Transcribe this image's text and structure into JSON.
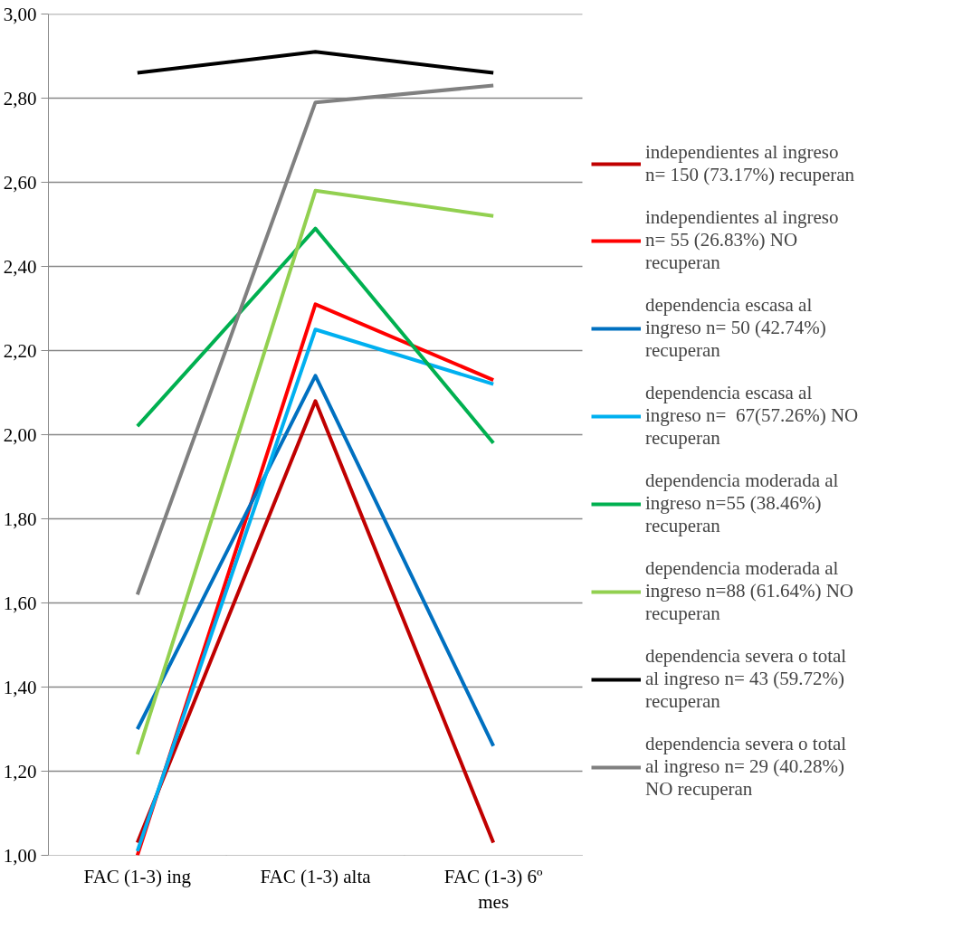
{
  "chart_data": {
    "type": "line",
    "categories": [
      "FAC (1-3) ing",
      "FAC (1-3) alta",
      "FAC (1-3) 6º mes"
    ],
    "ylim": [
      1.0,
      3.0
    ],
    "yticks": [
      {
        "value": 1.0,
        "label": "1,00"
      },
      {
        "value": 1.2,
        "label": "1,20"
      },
      {
        "value": 1.4,
        "label": "1,40"
      },
      {
        "value": 1.6,
        "label": "1,60"
      },
      {
        "value": 1.8,
        "label": "1,80"
      },
      {
        "value": 2.0,
        "label": "2,00"
      },
      {
        "value": 2.2,
        "label": "2,20"
      },
      {
        "value": 2.4,
        "label": "2,40"
      },
      {
        "value": 2.6,
        "label": "2,60"
      },
      {
        "value": 2.8,
        "label": "2,80"
      },
      {
        "value": 3.0,
        "label": "3,00"
      }
    ],
    "grid": "y",
    "legend": "right",
    "marker": "none",
    "line_style": "solid",
    "series": [
      {
        "name": "independientes al ingreso n= 150 (73.17%) recuperan",
        "color": "#c00000",
        "values": [
          1.03,
          2.08,
          1.03
        ]
      },
      {
        "name": "independientes al ingreso n= 55 (26.83%) NO recuperan",
        "color": "#ff0000",
        "values": [
          1.0,
          2.31,
          2.13
        ]
      },
      {
        "name": "dependencia escasa al ingreso n= 50 (42.74%) recuperan",
        "color": "#0070c0",
        "values": [
          1.3,
          2.14,
          1.26
        ]
      },
      {
        "name": "dependencia escasa al ingreso n=  67(57.26%) NO recuperan",
        "color": "#00b0f0",
        "values": [
          1.01,
          2.25,
          2.12
        ]
      },
      {
        "name": "dependencia moderada al ingreso n=55 (38.46%) recuperan",
        "color": "#00b050",
        "values": [
          2.02,
          2.49,
          1.98
        ]
      },
      {
        "name": "dependencia moderada al ingreso n=88 (61.64%) NO recuperan",
        "color": "#92d050",
        "values": [
          1.24,
          2.58,
          2.52
        ]
      },
      {
        "name": "dependencia severa o total al ingreso n= 43 (59.72%) recuperan",
        "color": "#000000",
        "values": [
          2.86,
          2.91,
          2.86
        ]
      },
      {
        "name": "dependencia severa o total al ingreso n= 29 (40.28%) NO recuperan",
        "color": "#808080",
        "values": [
          1.62,
          2.79,
          2.83
        ]
      }
    ]
  }
}
